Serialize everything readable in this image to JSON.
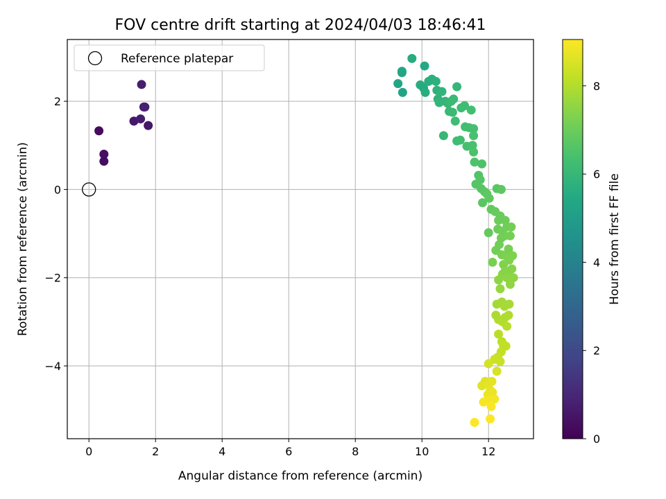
{
  "chart_data": {
    "type": "scatter",
    "title": "FOV centre drift starting at 2024/04/03 18:46:41",
    "xlabel": "Angular distance from reference (arcmin)",
    "ylabel": "Rotation from reference (arcmin)",
    "xlim": [
      -0.65,
      13.35
    ],
    "ylim": [
      -5.65,
      3.4
    ],
    "xticks": [
      0,
      2,
      4,
      6,
      8,
      10,
      12
    ],
    "yticks": [
      -4,
      -2,
      0,
      2
    ],
    "grid": true,
    "legend": {
      "placement": "top-left",
      "entries": [
        "Reference platepar"
      ]
    },
    "reference_point": {
      "x": 0,
      "y": 0,
      "label": "Reference platepar"
    },
    "colorbar": {
      "label": "Hours from first FF file",
      "range": [
        0,
        9.05
      ],
      "ticks": [
        0,
        2,
        4,
        6,
        8
      ],
      "colormap": "viridis"
    },
    "points": [
      {
        "x": 0.3,
        "y": 1.33,
        "c": 0.25
      },
      {
        "x": 0.45,
        "y": 0.8,
        "c": 0.35
      },
      {
        "x": 0.45,
        "y": 0.64,
        "c": 0.3
      },
      {
        "x": 1.35,
        "y": 1.55,
        "c": 0.6
      },
      {
        "x": 1.55,
        "y": 1.6,
        "c": 0.7
      },
      {
        "x": 1.58,
        "y": 2.38,
        "c": 0.75
      },
      {
        "x": 1.65,
        "y": 1.87,
        "c": 0.6
      },
      {
        "x": 1.68,
        "y": 1.87,
        "c": 0.8
      },
      {
        "x": 1.78,
        "y": 1.45,
        "c": 0.55
      },
      {
        "x": 9.28,
        "y": 2.4,
        "c": 5.3
      },
      {
        "x": 9.4,
        "y": 2.68,
        "c": 5.4
      },
      {
        "x": 9.4,
        "y": 2.65,
        "c": 5.35
      },
      {
        "x": 9.42,
        "y": 2.2,
        "c": 5.25
      },
      {
        "x": 9.7,
        "y": 2.97,
        "c": 5.55
      },
      {
        "x": 9.95,
        "y": 2.37,
        "c": 5.6
      },
      {
        "x": 10.05,
        "y": 2.3,
        "c": 5.5
      },
      {
        "x": 10.08,
        "y": 2.8,
        "c": 5.45
      },
      {
        "x": 10.1,
        "y": 2.2,
        "c": 5.6
      },
      {
        "x": 10.2,
        "y": 2.45,
        "c": 5.65
      },
      {
        "x": 10.3,
        "y": 2.5,
        "c": 5.7
      },
      {
        "x": 10.42,
        "y": 2.45,
        "c": 5.75
      },
      {
        "x": 10.45,
        "y": 2.25,
        "c": 5.8
      },
      {
        "x": 10.48,
        "y": 2.05,
        "c": 5.8
      },
      {
        "x": 10.52,
        "y": 1.97,
        "c": 5.9
      },
      {
        "x": 10.6,
        "y": 2.22,
        "c": 5.85
      },
      {
        "x": 10.7,
        "y": 2.0,
        "c": 5.9
      },
      {
        "x": 10.65,
        "y": 1.22,
        "c": 6.0
      },
      {
        "x": 10.78,
        "y": 1.95,
        "c": 6.0
      },
      {
        "x": 10.82,
        "y": 1.77,
        "c": 6.05
      },
      {
        "x": 10.88,
        "y": 2.0,
        "c": 6.05
      },
      {
        "x": 10.92,
        "y": 1.75,
        "c": 6.1
      },
      {
        "x": 10.95,
        "y": 2.05,
        "c": 6.1
      },
      {
        "x": 11.0,
        "y": 1.55,
        "c": 6.2
      },
      {
        "x": 11.05,
        "y": 2.33,
        "c": 6.0
      },
      {
        "x": 11.05,
        "y": 1.1,
        "c": 6.2
      },
      {
        "x": 11.15,
        "y": 1.12,
        "c": 6.25
      },
      {
        "x": 11.18,
        "y": 1.85,
        "c": 6.15
      },
      {
        "x": 11.28,
        "y": 1.9,
        "c": 6.2
      },
      {
        "x": 11.3,
        "y": 1.42,
        "c": 6.3
      },
      {
        "x": 11.35,
        "y": 0.98,
        "c": 6.35
      },
      {
        "x": 11.42,
        "y": 1.4,
        "c": 6.3
      },
      {
        "x": 11.48,
        "y": 1.8,
        "c": 6.3
      },
      {
        "x": 11.52,
        "y": 1.0,
        "c": 6.4
      },
      {
        "x": 11.55,
        "y": 1.38,
        "c": 6.35
      },
      {
        "x": 11.55,
        "y": 1.22,
        "c": 6.4
      },
      {
        "x": 11.55,
        "y": 0.85,
        "c": 6.45
      },
      {
        "x": 11.58,
        "y": 0.62,
        "c": 6.5
      },
      {
        "x": 11.62,
        "y": 0.12,
        "c": 6.6
      },
      {
        "x": 11.7,
        "y": 0.32,
        "c": 6.55
      },
      {
        "x": 11.75,
        "y": 0.22,
        "c": 6.6
      },
      {
        "x": 11.78,
        "y": 0.02,
        "c": 6.65
      },
      {
        "x": 11.8,
        "y": 0.58,
        "c": 6.5
      },
      {
        "x": 11.82,
        "y": -0.3,
        "c": 6.7
      },
      {
        "x": 11.88,
        "y": -0.05,
        "c": 6.7
      },
      {
        "x": 11.95,
        "y": -0.1,
        "c": 6.75
      },
      {
        "x": 12.0,
        "y": -0.98,
        "c": 6.85
      },
      {
        "x": 12.02,
        "y": -0.2,
        "c": 6.8
      },
      {
        "x": 12.08,
        "y": -0.45,
        "c": 6.85
      },
      {
        "x": 12.12,
        "y": -1.65,
        "c": 7.2
      },
      {
        "x": 12.2,
        "y": -0.5,
        "c": 6.9
      },
      {
        "x": 12.22,
        "y": -1.38,
        "c": 7.1
      },
      {
        "x": 12.25,
        "y": 0.02,
        "c": 6.7
      },
      {
        "x": 12.28,
        "y": -0.9,
        "c": 7.0
      },
      {
        "x": 12.3,
        "y": -0.7,
        "c": 7.0
      },
      {
        "x": 12.32,
        "y": -1.25,
        "c": 7.1
      },
      {
        "x": 12.35,
        "y": -0.6,
        "c": 6.95
      },
      {
        "x": 12.38,
        "y": 0.0,
        "c": 6.75
      },
      {
        "x": 12.38,
        "y": -1.1,
        "c": 7.05
      },
      {
        "x": 12.4,
        "y": -1.48,
        "c": 7.2
      },
      {
        "x": 12.42,
        "y": -0.95,
        "c": 7.05
      },
      {
        "x": 12.45,
        "y": -1.7,
        "c": 7.3
      },
      {
        "x": 12.48,
        "y": -1.05,
        "c": 7.1
      },
      {
        "x": 12.5,
        "y": -0.7,
        "c": 7.0
      },
      {
        "x": 12.52,
        "y": -1.5,
        "c": 7.25
      },
      {
        "x": 12.55,
        "y": -0.85,
        "c": 7.05
      },
      {
        "x": 12.58,
        "y": -1.9,
        "c": 7.4
      },
      {
        "x": 12.6,
        "y": -1.35,
        "c": 7.2
      },
      {
        "x": 12.62,
        "y": -1.6,
        "c": 7.3
      },
      {
        "x": 12.65,
        "y": -1.05,
        "c": 7.15
      },
      {
        "x": 12.68,
        "y": -0.85,
        "c": 7.1
      },
      {
        "x": 12.7,
        "y": -1.8,
        "c": 7.4
      },
      {
        "x": 12.72,
        "y": -1.5,
        "c": 7.3
      },
      {
        "x": 12.75,
        "y": -2.0,
        "c": 7.5
      },
      {
        "x": 12.65,
        "y": -2.15,
        "c": 7.55
      },
      {
        "x": 12.3,
        "y": -2.05,
        "c": 7.5
      },
      {
        "x": 12.35,
        "y": -2.25,
        "c": 7.6
      },
      {
        "x": 12.42,
        "y": -1.92,
        "c": 7.45
      },
      {
        "x": 12.5,
        "y": -1.85,
        "c": 7.4
      },
      {
        "x": 12.55,
        "y": -2.0,
        "c": 7.5
      },
      {
        "x": 12.25,
        "y": -2.6,
        "c": 7.8
      },
      {
        "x": 12.4,
        "y": -2.55,
        "c": 7.8
      },
      {
        "x": 12.48,
        "y": -2.65,
        "c": 7.85
      },
      {
        "x": 12.62,
        "y": -2.6,
        "c": 7.85
      },
      {
        "x": 12.3,
        "y": -2.95,
        "c": 7.95
      },
      {
        "x": 12.42,
        "y": -3.0,
        "c": 8.0
      },
      {
        "x": 12.5,
        "y": -2.9,
        "c": 7.95
      },
      {
        "x": 12.55,
        "y": -3.1,
        "c": 8.05
      },
      {
        "x": 12.6,
        "y": -2.85,
        "c": 7.95
      },
      {
        "x": 12.22,
        "y": -2.85,
        "c": 7.9
      },
      {
        "x": 12.3,
        "y": -3.28,
        "c": 8.1
      },
      {
        "x": 12.4,
        "y": -3.45,
        "c": 8.15
      },
      {
        "x": 12.45,
        "y": -3.55,
        "c": 8.2
      },
      {
        "x": 12.38,
        "y": -3.68,
        "c": 8.25
      },
      {
        "x": 12.52,
        "y": -3.55,
        "c": 8.2
      },
      {
        "x": 12.28,
        "y": -3.8,
        "c": 8.3
      },
      {
        "x": 12.35,
        "y": -3.9,
        "c": 8.35
      },
      {
        "x": 12.18,
        "y": -3.85,
        "c": 8.35
      },
      {
        "x": 12.0,
        "y": -3.95,
        "c": 8.45
      },
      {
        "x": 12.25,
        "y": -4.12,
        "c": 8.5
      },
      {
        "x": 11.9,
        "y": -4.35,
        "c": 8.6
      },
      {
        "x": 11.8,
        "y": -4.45,
        "c": 8.65
      },
      {
        "x": 12.0,
        "y": -4.42,
        "c": 8.7
      },
      {
        "x": 12.1,
        "y": -4.35,
        "c": 8.7
      },
      {
        "x": 12.05,
        "y": -4.55,
        "c": 8.75
      },
      {
        "x": 11.98,
        "y": -4.65,
        "c": 8.8
      },
      {
        "x": 12.08,
        "y": -4.7,
        "c": 8.85
      },
      {
        "x": 12.12,
        "y": -4.6,
        "c": 8.8
      },
      {
        "x": 12.02,
        "y": -4.78,
        "c": 8.9
      },
      {
        "x": 12.18,
        "y": -4.75,
        "c": 8.9
      },
      {
        "x": 11.85,
        "y": -4.82,
        "c": 8.95
      },
      {
        "x": 12.08,
        "y": -4.92,
        "c": 9.0
      },
      {
        "x": 11.58,
        "y": -5.28,
        "c": 9.05
      },
      {
        "x": 12.05,
        "y": -5.2,
        "c": 9.05
      }
    ]
  }
}
